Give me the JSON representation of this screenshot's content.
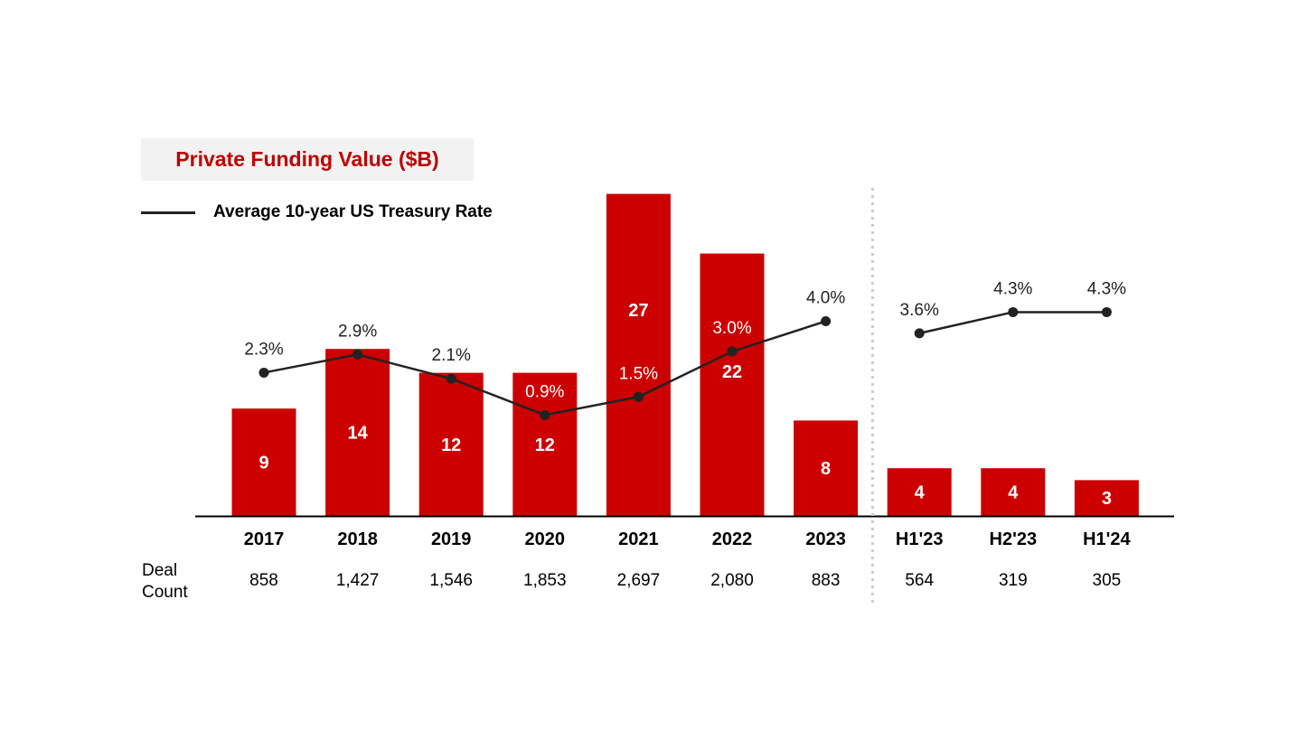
{
  "colors": {
    "bar": "#cc0000",
    "line": "#222222",
    "divider": "#cccccc",
    "title_bg": "#f2f2f2",
    "title_text": "#c00000"
  },
  "title": "Private Funding Value ($B)",
  "legend": {
    "line_label": "Average 10-year US Treasury Rate"
  },
  "deal_count_label": {
    "line1": "Deal",
    "line2": "Count"
  },
  "chart_data": {
    "type": "bar",
    "title": "Private Funding Value ($B)",
    "categories": [
      "2017",
      "2018",
      "2019",
      "2020",
      "2021",
      "2022",
      "2023",
      "H1'23",
      "H2'23",
      "H1'24"
    ],
    "series": [
      {
        "name": "Private Funding Value ($B)",
        "type": "bar",
        "values": [
          9,
          14,
          12,
          12,
          27,
          22,
          8,
          4,
          4,
          3
        ],
        "labels": [
          "9",
          "14",
          "12",
          "12",
          "27",
          "22",
          "8",
          "4",
          "4",
          "3"
        ]
      },
      {
        "name": "Average 10-year US Treasury Rate",
        "type": "line",
        "values": [
          2.3,
          2.9,
          2.1,
          0.9,
          1.5,
          3.0,
          4.0,
          3.6,
          4.3,
          4.3
        ],
        "labels": [
          "2.3%",
          "2.9%",
          "2.1%",
          "0.9%",
          "1.5%",
          "3.0%",
          "4.0%",
          "3.6%",
          "4.3%",
          "4.3%"
        ],
        "segments": [
          [
            0,
            6
          ],
          [
            7,
            9
          ]
        ]
      }
    ],
    "deal_counts": [
      "858",
      "1,427",
      "1,546",
      "1,853",
      "2,697",
      "2,080",
      "883",
      "564",
      "319",
      "305"
    ],
    "divider_after_category": "2023",
    "ylim": [
      0,
      27
    ],
    "grid": false,
    "legend_position": "top-left"
  }
}
